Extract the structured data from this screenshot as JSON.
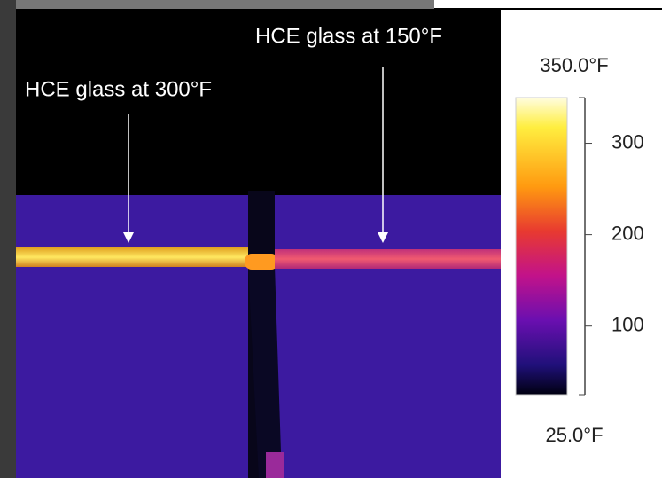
{
  "annotations": [
    {
      "label": "HCE glass at 300°F"
    },
    {
      "label": "HCE glass at 150°F"
    }
  ],
  "colorbar": {
    "max": {
      "value": 350,
      "label": "350.0°F"
    },
    "min": {
      "value": 25,
      "label": "25.0°F"
    },
    "ticks": [
      100,
      200,
      300
    ]
  }
}
